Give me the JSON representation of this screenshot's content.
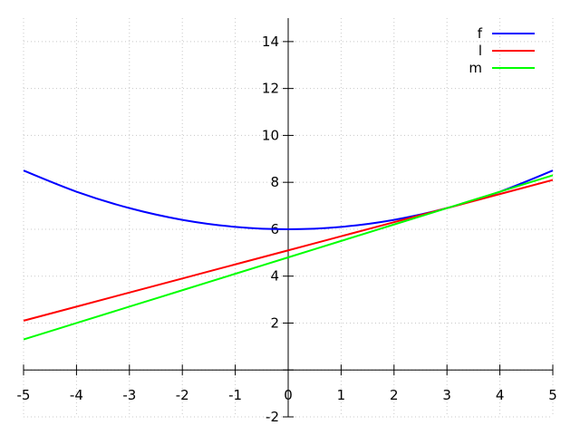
{
  "chart_data": {
    "type": "line",
    "title": "",
    "xlabel": "",
    "ylabel": "",
    "xlim": [
      -5,
      5
    ],
    "ylim": [
      -2,
      15
    ],
    "grid": true,
    "legend_position": "top-right",
    "x_ticks": [
      -5,
      -4,
      -3,
      -2,
      -1,
      0,
      1,
      2,
      3,
      4,
      5
    ],
    "y_ticks": [
      -2,
      0,
      2,
      4,
      6,
      8,
      10,
      12,
      14
    ],
    "x": [
      -5,
      -4,
      -3,
      -2,
      -1,
      0,
      1,
      2,
      3,
      4,
      5
    ],
    "series": [
      {
        "name": "f",
        "color": "#0000ff",
        "values": [
          8.5,
          7.6,
          6.9,
          6.4,
          6.1,
          6.0,
          6.1,
          6.4,
          6.9,
          7.6,
          8.5
        ]
      },
      {
        "name": "l",
        "color": "#ff0000",
        "values": [
          2.1,
          2.7,
          3.3,
          3.9,
          4.5,
          5.1,
          5.7,
          6.3,
          6.9,
          7.5,
          8.1
        ]
      },
      {
        "name": "m",
        "color": "#00ff00",
        "values": [
          1.3,
          2.0,
          2.7,
          3.4,
          4.1,
          4.8,
          5.5,
          6.2,
          6.9,
          7.6,
          8.3
        ]
      }
    ]
  }
}
